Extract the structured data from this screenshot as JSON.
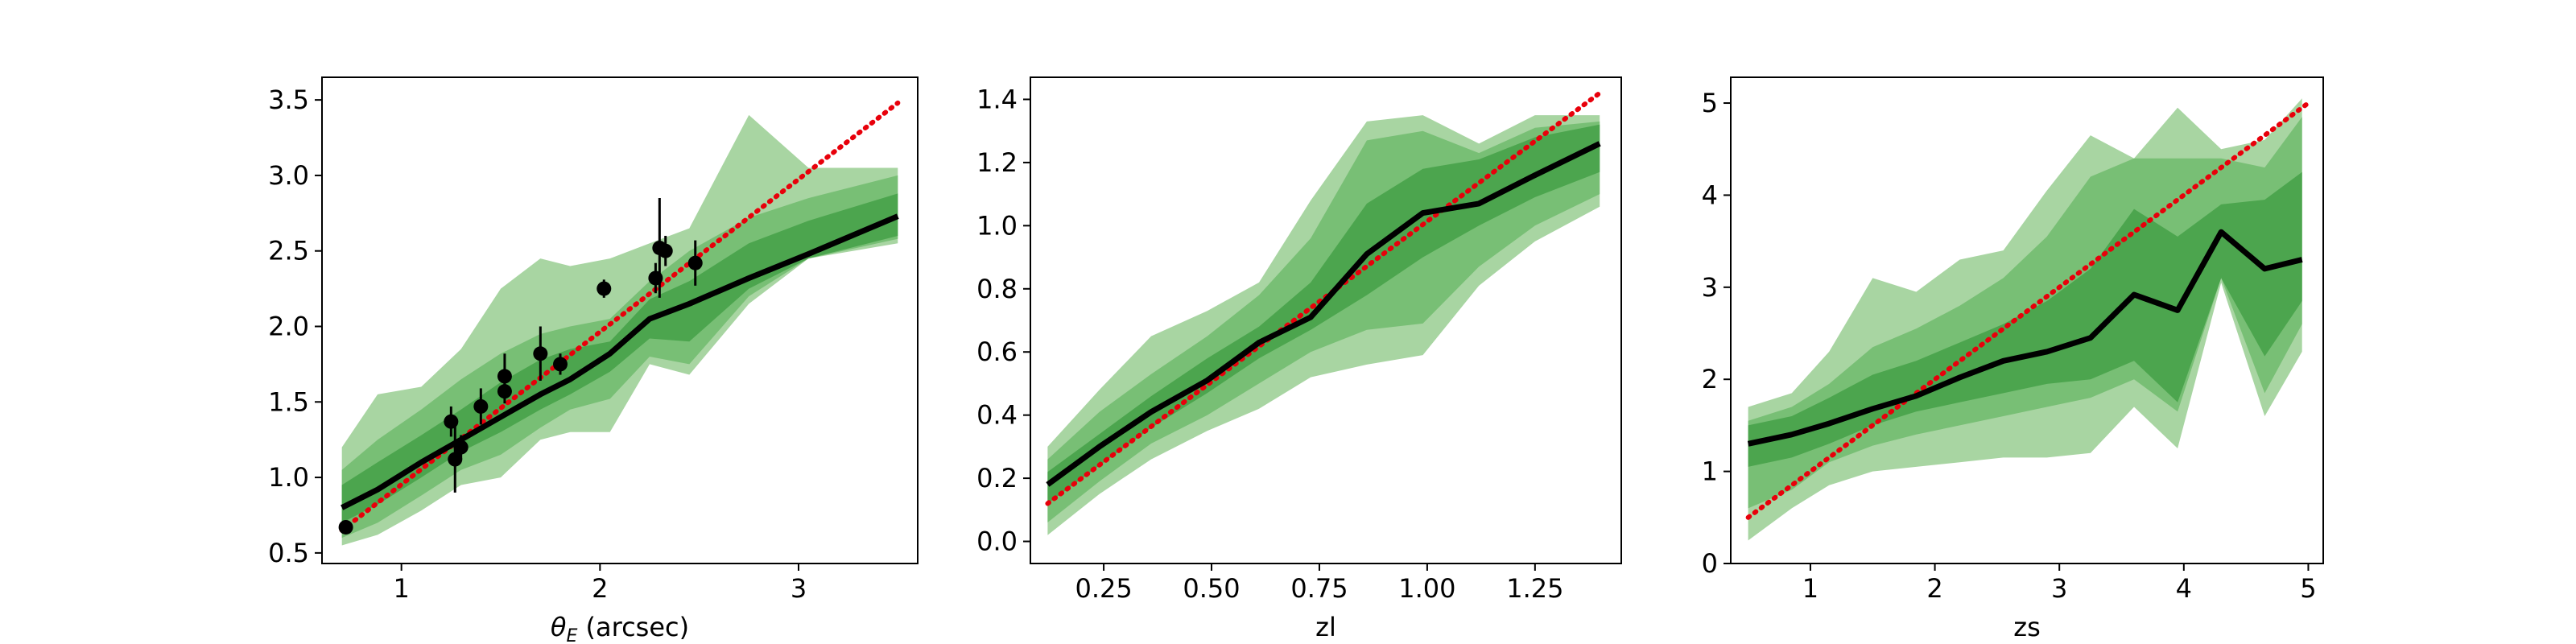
{
  "chart_data": [
    {
      "type": "area",
      "panel": "theta_E",
      "xlabel": "θ_E (arcsec)",
      "xlim": [
        0.6,
        3.6
      ],
      "ylim": [
        0.43,
        3.65
      ],
      "xticks": [
        1,
        2,
        3
      ],
      "xtick_labels": [
        "1",
        "2",
        "3"
      ],
      "yticks": [
        0.5,
        1.0,
        1.5,
        2.0,
        2.5,
        3.0,
        3.5
      ],
      "ytick_labels": [
        "0.5",
        "1.0",
        "1.5",
        "2.0",
        "2.5",
        "3.0",
        "3.5"
      ],
      "bands_x": [
        0.7,
        0.88,
        1.1,
        1.3,
        1.5,
        1.7,
        1.85,
        2.05,
        2.25,
        2.45,
        2.75,
        3.05,
        3.5
      ],
      "bands": [
        {
          "level": "outer",
          "lo": [
            0.55,
            0.62,
            0.78,
            0.95,
            1.0,
            1.25,
            1.3,
            1.3,
            1.75,
            1.68,
            2.15,
            2.45,
            2.55
          ],
          "hi": [
            1.2,
            1.55,
            1.6,
            1.85,
            2.25,
            2.45,
            2.4,
            2.45,
            2.55,
            2.65,
            3.4,
            3.05,
            3.05
          ]
        },
        {
          "level": "middle",
          "lo": [
            0.6,
            0.7,
            0.88,
            1.05,
            1.15,
            1.33,
            1.45,
            1.52,
            1.8,
            1.75,
            2.2,
            2.45,
            2.58
          ],
          "hi": [
            1.05,
            1.25,
            1.45,
            1.65,
            1.82,
            1.95,
            2.0,
            2.05,
            2.3,
            2.5,
            2.72,
            2.85,
            3.0
          ]
        },
        {
          "level": "inner",
          "lo": [
            0.7,
            0.82,
            1.0,
            1.17,
            1.3,
            1.45,
            1.55,
            1.7,
            1.92,
            1.9,
            2.25,
            2.45,
            2.6
          ],
          "hi": [
            0.95,
            1.1,
            1.28,
            1.45,
            1.63,
            1.78,
            1.85,
            1.9,
            2.18,
            2.3,
            2.55,
            2.7,
            2.88
          ]
        }
      ],
      "median": {
        "x": [
          0.7,
          0.88,
          1.1,
          1.3,
          1.5,
          1.7,
          1.85,
          2.05,
          2.25,
          2.45,
          2.75,
          3.05,
          3.5
        ],
        "y": [
          0.8,
          0.92,
          1.1,
          1.25,
          1.4,
          1.55,
          1.65,
          1.82,
          2.05,
          2.15,
          2.32,
          2.48,
          2.73
        ]
      },
      "one_to_one": {
        "x": [
          0.7,
          3.5
        ],
        "y": [
          0.65,
          3.48
        ]
      },
      "points": [
        {
          "x": 0.72,
          "y": 0.67,
          "err": 0.04
        },
        {
          "x": 1.25,
          "y": 1.37,
          "err": 0.1
        },
        {
          "x": 1.27,
          "y": 1.12,
          "err": 0.22
        },
        {
          "x": 1.3,
          "y": 1.2,
          "err": 0.08
        },
        {
          "x": 1.4,
          "y": 1.47,
          "err": 0.12
        },
        {
          "x": 1.52,
          "y": 1.57,
          "err": 0.08
        },
        {
          "x": 1.52,
          "y": 1.67,
          "err": 0.15
        },
        {
          "x": 1.7,
          "y": 1.82,
          "err": 0.18
        },
        {
          "x": 1.8,
          "y": 1.75,
          "err": 0.07
        },
        {
          "x": 2.02,
          "y": 2.25,
          "err": 0.06
        },
        {
          "x": 2.28,
          "y": 2.32,
          "err": 0.1
        },
        {
          "x": 2.3,
          "y": 2.52,
          "err": 0.33
        },
        {
          "x": 2.33,
          "y": 2.5,
          "err": 0.1
        },
        {
          "x": 2.48,
          "y": 2.42,
          "err": 0.15
        }
      ]
    },
    {
      "type": "area",
      "panel": "zl",
      "xlabel": "zl",
      "xlim": [
        0.08,
        1.45
      ],
      "ylim": [
        -0.07,
        1.47
      ],
      "xticks": [
        0.25,
        0.5,
        0.75,
        1.0,
        1.25
      ],
      "xtick_labels": [
        "0.25",
        "0.50",
        "0.75",
        "1.00",
        "1.25"
      ],
      "yticks": [
        0.0,
        0.2,
        0.4,
        0.6,
        0.8,
        1.0,
        1.2,
        1.4
      ],
      "ytick_labels": [
        "0.0",
        "0.2",
        "0.4",
        "0.6",
        "0.8",
        "1.0",
        "1.2",
        "1.4"
      ],
      "bands_x": [
        0.12,
        0.24,
        0.36,
        0.49,
        0.61,
        0.73,
        0.86,
        0.99,
        1.12,
        1.25,
        1.4
      ],
      "bands": [
        {
          "level": "outer",
          "lo": [
            0.02,
            0.15,
            0.26,
            0.35,
            0.42,
            0.52,
            0.56,
            0.59,
            0.81,
            0.95,
            1.06
          ],
          "hi": [
            0.3,
            0.48,
            0.65,
            0.73,
            0.82,
            1.08,
            1.33,
            1.35,
            1.26,
            1.35,
            1.35
          ]
        },
        {
          "level": "middle",
          "lo": [
            0.06,
            0.19,
            0.31,
            0.4,
            0.5,
            0.6,
            0.67,
            0.69,
            0.87,
            1.0,
            1.1
          ],
          "hi": [
            0.26,
            0.41,
            0.53,
            0.65,
            0.78,
            0.96,
            1.27,
            1.3,
            1.23,
            1.31,
            1.33
          ]
        },
        {
          "level": "inner",
          "lo": [
            0.12,
            0.24,
            0.36,
            0.47,
            0.58,
            0.67,
            0.78,
            0.9,
            1.0,
            1.09,
            1.17
          ],
          "hi": [
            0.22,
            0.34,
            0.46,
            0.58,
            0.68,
            0.82,
            1.07,
            1.18,
            1.21,
            1.28,
            1.32
          ]
        }
      ],
      "median": {
        "x": [
          0.12,
          0.24,
          0.36,
          0.49,
          0.61,
          0.73,
          0.86,
          0.99,
          1.12,
          1.25,
          1.4
        ],
        "y": [
          0.18,
          0.3,
          0.41,
          0.51,
          0.63,
          0.71,
          0.91,
          1.04,
          1.07,
          1.16,
          1.26
        ]
      },
      "one_to_one": {
        "x": [
          0.12,
          1.4
        ],
        "y": [
          0.12,
          1.42
        ]
      },
      "points": []
    },
    {
      "type": "area",
      "panel": "zs",
      "xlabel": "zs",
      "xlim": [
        0.36,
        5.12
      ],
      "ylim": [
        0.0,
        5.28
      ],
      "xticks": [
        1,
        2,
        3,
        4,
        5
      ],
      "xtick_labels": [
        "1",
        "2",
        "3",
        "4",
        "5"
      ],
      "yticks": [
        0,
        1,
        2,
        3,
        4,
        5
      ],
      "ytick_labels": [
        "0",
        "1",
        "2",
        "3",
        "4",
        "5"
      ],
      "bands_x": [
        0.5,
        0.85,
        1.15,
        1.5,
        1.85,
        2.2,
        2.55,
        2.9,
        3.25,
        3.6,
        3.95,
        4.3,
        4.65,
        4.95
      ],
      "bands": [
        {
          "level": "outer",
          "lo": [
            0.25,
            0.6,
            0.85,
            1.0,
            1.05,
            1.1,
            1.15,
            1.15,
            1.2,
            1.7,
            1.25,
            3.05,
            1.6,
            2.3
          ],
          "hi": [
            1.7,
            1.85,
            2.3,
            3.1,
            2.95,
            3.3,
            3.4,
            4.05,
            4.65,
            4.4,
            4.95,
            4.5,
            4.6,
            5.05
          ]
        },
        {
          "level": "middle",
          "lo": [
            0.6,
            0.8,
            1.1,
            1.28,
            1.4,
            1.5,
            1.6,
            1.7,
            1.8,
            2.0,
            1.65,
            3.1,
            1.85,
            2.6
          ],
          "hi": [
            1.55,
            1.7,
            1.95,
            2.35,
            2.55,
            2.8,
            3.1,
            3.55,
            4.2,
            4.4,
            4.4,
            4.4,
            4.3,
            4.85
          ]
        },
        {
          "level": "inner",
          "lo": [
            1.05,
            1.15,
            1.3,
            1.5,
            1.65,
            1.75,
            1.85,
            1.95,
            2.0,
            2.2,
            1.75,
            3.1,
            2.25,
            2.85
          ],
          "hi": [
            1.5,
            1.6,
            1.8,
            2.05,
            2.2,
            2.4,
            2.6,
            2.85,
            3.2,
            3.85,
            3.55,
            3.9,
            3.95,
            4.25
          ]
        }
      ],
      "median": {
        "x": [
          0.5,
          0.85,
          1.15,
          1.5,
          1.85,
          2.2,
          2.55,
          2.9,
          3.25,
          3.6,
          3.95,
          4.3,
          4.65,
          4.95
        ],
        "y": [
          1.3,
          1.4,
          1.52,
          1.68,
          1.82,
          2.02,
          2.2,
          2.3,
          2.45,
          2.92,
          2.75,
          3.6,
          3.2,
          3.3
        ]
      },
      "one_to_one": {
        "x": [
          0.5,
          5.0
        ],
        "y": [
          0.5,
          5.0
        ]
      },
      "points": []
    }
  ],
  "colors": {
    "band_outer": "#a8d5a2",
    "band_middle": "#78bf75",
    "band_inner": "#4ca54e",
    "median": "#000000",
    "one_to_one": "#e8000b",
    "points": "#000000"
  }
}
